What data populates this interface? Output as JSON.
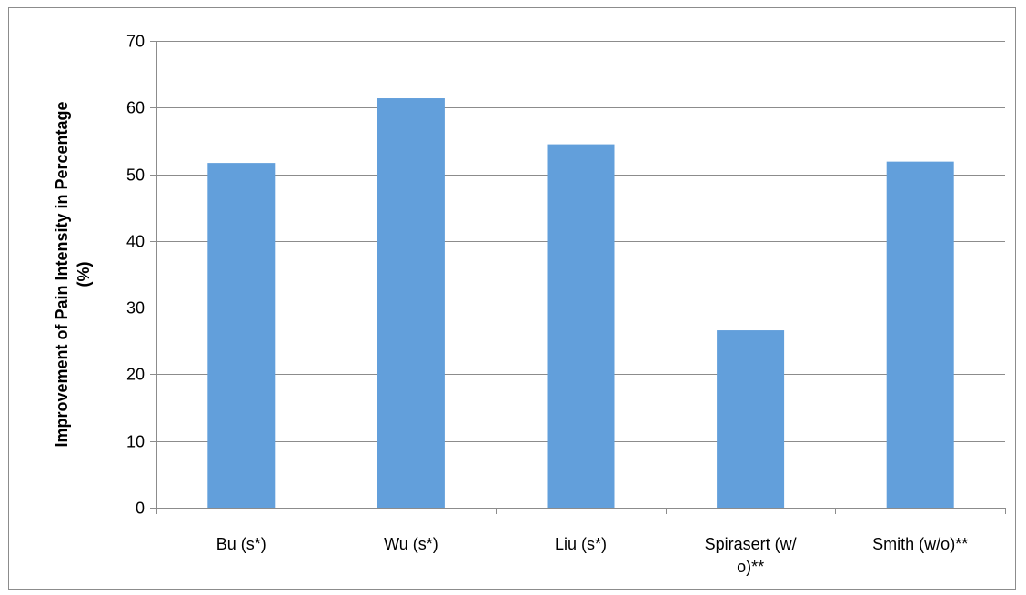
{
  "chart_data": {
    "type": "bar",
    "categories": [
      [
        "Bu (s*)"
      ],
      [
        "Wu (s*)"
      ],
      [
        "Liu (s*)"
      ],
      [
        "Spirasert (w/",
        "o)**"
      ],
      [
        "Smith (w/o)**"
      ]
    ],
    "values": [
      51.7,
      61.4,
      54.5,
      26.6,
      51.9
    ],
    "ylabel": [
      "Improvement of Pain Intensity in Percentage",
      "(%)"
    ],
    "xlabel": "",
    "title": "",
    "ylim": [
      0,
      70
    ],
    "yticks": [
      0,
      10,
      20,
      30,
      40,
      50,
      60,
      70
    ],
    "grid": true,
    "legend": "none",
    "colors": {
      "bar": "#629fdb",
      "grid": "#8c8c8c",
      "axis": "#8c8c8c",
      "text": "#000000"
    }
  }
}
